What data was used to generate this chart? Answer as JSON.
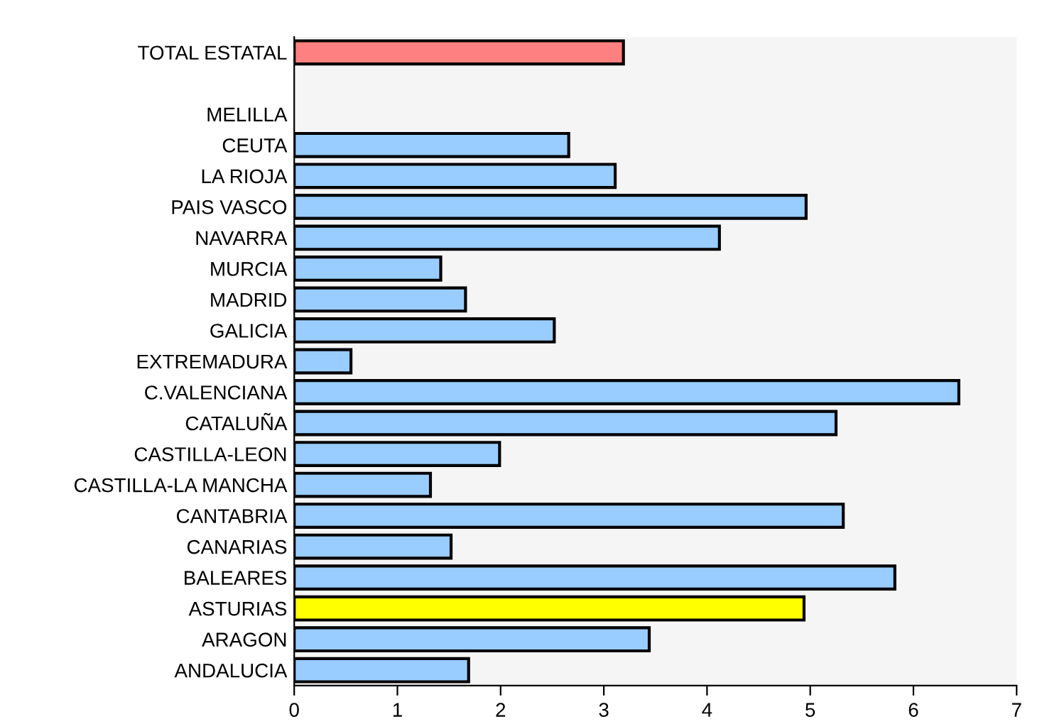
{
  "chart_data": {
    "type": "bar",
    "orientation": "horizontal",
    "categories": [
      "TOTAL ESTATAL",
      null,
      "MELILLA",
      "CEUTA",
      "LA RIOJA",
      "PAIS VASCO",
      "NAVARRA",
      "MURCIA",
      "MADRID",
      "GALICIA",
      "EXTREMADURA",
      "C.VALENCIANA",
      "CATALUÑA",
      "CASTILLA-LEON",
      "CASTILLA-LA MANCHA",
      "CANTABRIA",
      "CANARIAS",
      "BALEARES",
      "ASTURIAS",
      "ARAGON",
      "ANDALUCIA"
    ],
    "values": [
      3.19,
      null,
      null,
      2.66,
      3.11,
      4.96,
      4.12,
      1.42,
      1.66,
      2.52,
      0.55,
      6.44,
      5.25,
      1.99,
      1.32,
      5.32,
      1.52,
      5.82,
      4.94,
      3.44,
      1.69
    ],
    "colors": [
      "#ff8080",
      null,
      null,
      "#99ccff",
      "#99ccff",
      "#99ccff",
      "#99ccff",
      "#99ccff",
      "#99ccff",
      "#99ccff",
      "#99ccff",
      "#99ccff",
      "#99ccff",
      "#99ccff",
      "#99ccff",
      "#99ccff",
      "#99ccff",
      "#99ccff",
      "#ffff00",
      "#99ccff",
      "#99ccff"
    ],
    "xlim": [
      0,
      7
    ],
    "xticks": [
      0,
      1,
      2,
      3,
      4,
      5,
      6,
      7
    ],
    "grid": false,
    "legend": false
  }
}
